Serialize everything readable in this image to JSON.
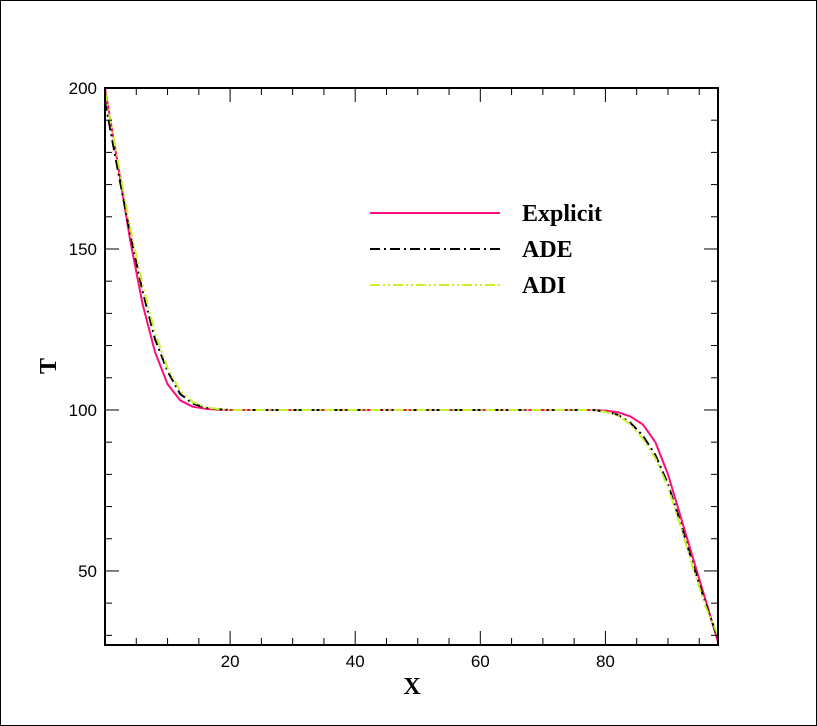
{
  "chart_data": {
    "type": "line",
    "xlabel": "X",
    "ylabel": "T",
    "xlim": [
      0,
      98
    ],
    "ylim": [
      27,
      200
    ],
    "xticks": [
      20,
      40,
      60,
      80
    ],
    "yticks": [
      50,
      100,
      150,
      200
    ],
    "xtick_labels": [
      "20",
      "40",
      "60",
      "80"
    ],
    "ytick_labels": [
      "50",
      "100",
      "150",
      "200"
    ],
    "grid": false,
    "legend": "upper-right",
    "series": [
      {
        "name": "Explicit",
        "color": "#ff0d7a",
        "style": "solid",
        "x": [
          0,
          2,
          4,
          6,
          8,
          10,
          12,
          14,
          16,
          18,
          20,
          40,
          60,
          78,
          80,
          82,
          84,
          86,
          88,
          90,
          92,
          94,
          96,
          98
        ],
        "y": [
          200,
          177,
          153,
          133,
          118,
          108,
          103,
          101,
          100.4,
          100.1,
          100,
          100,
          100,
          100,
          99.8,
          99.3,
          98,
          95.5,
          90,
          80,
          67,
          54,
          41,
          28
        ]
      },
      {
        "name": "ADE",
        "color": "#000000",
        "style": "dashdot",
        "x": [
          0,
          2,
          4,
          6,
          8,
          10,
          12,
          14,
          16,
          18,
          20,
          40,
          60,
          78,
          80,
          82,
          84,
          86,
          88,
          90,
          92,
          94,
          96,
          98
        ],
        "y": [
          196,
          175,
          155,
          137,
          122,
          112,
          105,
          102,
          100.7,
          100.2,
          100,
          100,
          100,
          100,
          99.5,
          98.5,
          96,
          92,
          86,
          77,
          65,
          52,
          40,
          29
        ]
      },
      {
        "name": "ADI",
        "color": "#c8f22c",
        "style": "dashdotdot",
        "x": [
          0,
          2,
          4,
          6,
          8,
          10,
          12,
          14,
          16,
          18,
          20,
          40,
          60,
          78,
          80,
          82,
          84,
          86,
          88,
          90,
          92,
          94,
          96,
          98
        ],
        "y": [
          199,
          178,
          157,
          139,
          124,
          113,
          106,
          102.5,
          100.9,
          100.3,
          100,
          100,
          100,
          100,
          99.4,
          98.3,
          95.5,
          91,
          85,
          76,
          64,
          51,
          39,
          30
        ]
      }
    ]
  }
}
